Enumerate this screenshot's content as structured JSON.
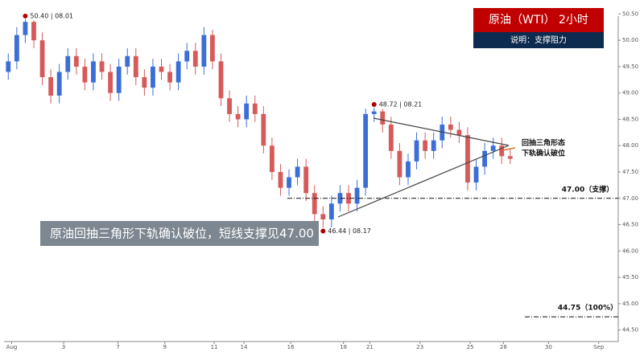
{
  "chart_data": {
    "type": "candlestick",
    "title": "原油（WTI） 2小时",
    "subtitle": "说明：支撑阻力",
    "callout": "原油回抽三角形下轨确认破位，短线支撑见47.00",
    "pattern_note": [
      "回抽三角形态",
      "下轨确认破位"
    ],
    "up_color": "#3b6fd6",
    "down_color": "#d65a5a",
    "open": [
      49.4,
      49.6,
      50.1,
      50.35,
      50.0,
      49.3,
      48.95,
      49.4,
      49.7,
      49.5,
      49.2,
      49.6,
      49.4,
      49.0,
      49.5,
      49.7,
      49.3,
      49.1,
      49.5,
      49.4,
      49.2,
      49.6,
      49.8,
      49.5,
      50.1,
      49.6,
      48.9,
      48.6,
      48.5,
      48.8,
      48.6,
      48.0,
      47.5,
      47.2,
      47.4,
      47.6,
      47.1,
      46.7,
      46.6,
      46.9,
      47.1,
      46.9,
      47.2,
      48.6,
      48.65,
      48.4,
      47.9,
      47.4,
      47.7,
      48.1,
      47.9,
      48.1,
      48.4,
      48.3,
      48.2,
      47.3,
      47.6,
      47.9,
      48.0,
      47.8
    ],
    "high": [
      49.75,
      50.25,
      50.4,
      50.38,
      50.15,
      49.45,
      49.55,
      49.85,
      49.85,
      49.65,
      49.75,
      49.75,
      49.55,
      49.65,
      49.85,
      49.85,
      49.45,
      49.65,
      49.65,
      49.55,
      49.75,
      49.95,
      49.95,
      50.25,
      50.2,
      49.75,
      49.05,
      48.75,
      48.95,
      48.95,
      48.75,
      48.15,
      47.65,
      47.55,
      47.75,
      47.75,
      47.25,
      46.85,
      47.05,
      47.25,
      47.25,
      47.35,
      48.7,
      48.72,
      48.7,
      48.55,
      48.05,
      47.85,
      48.25,
      48.25,
      48.25,
      48.55,
      48.55,
      48.45,
      48.35,
      47.75,
      48.05,
      48.15,
      48.15,
      47.95
    ],
    "low": [
      49.25,
      49.45,
      49.95,
      49.85,
      49.15,
      48.8,
      48.8,
      49.25,
      49.35,
      49.05,
      49.05,
      49.25,
      48.85,
      48.85,
      49.35,
      49.15,
      48.95,
      48.95,
      49.25,
      49.05,
      49.05,
      49.45,
      49.35,
      49.35,
      49.45,
      48.75,
      48.45,
      48.35,
      48.35,
      48.45,
      47.85,
      47.35,
      47.05,
      47.05,
      47.25,
      46.95,
      46.55,
      46.44,
      46.45,
      46.75,
      46.75,
      46.75,
      47.05,
      48.45,
      48.25,
      47.75,
      47.25,
      47.25,
      47.55,
      47.75,
      47.75,
      47.95,
      48.15,
      48.05,
      47.15,
      47.15,
      47.45,
      47.75,
      47.65,
      47.65
    ],
    "close": [
      49.6,
      50.1,
      50.35,
      50.0,
      49.3,
      48.95,
      49.4,
      49.7,
      49.5,
      49.2,
      49.6,
      49.4,
      49.0,
      49.5,
      49.7,
      49.3,
      49.1,
      49.5,
      49.4,
      49.2,
      49.6,
      49.8,
      49.5,
      50.1,
      49.6,
      48.9,
      48.6,
      48.5,
      48.8,
      48.6,
      48.0,
      47.5,
      47.2,
      47.4,
      47.6,
      47.1,
      46.7,
      46.6,
      46.9,
      47.1,
      46.9,
      47.2,
      48.6,
      48.65,
      48.4,
      47.9,
      47.4,
      47.7,
      48.1,
      47.9,
      48.1,
      48.4,
      48.3,
      48.2,
      47.3,
      47.6,
      47.9,
      48.0,
      47.8,
      47.75
    ],
    "extreme_labels": [
      {
        "label": "50.40 | 08.01",
        "value": 50.4
      },
      {
        "label": "48.72 | 08.21",
        "value": 48.72
      },
      {
        "label": "46.44 | 08.17",
        "value": 46.44
      }
    ],
    "levels": [
      {
        "label": "47.00（支撑）",
        "value": 47.0
      },
      {
        "label": "44.75（100%）",
        "value": 44.75
      }
    ],
    "xlim": [
      -0.5,
      71.7
    ],
    "xticks": [
      {
        "value": 0.4,
        "label": "Aug"
      },
      {
        "value": 6.5,
        "label": "3"
      },
      {
        "value": 12.9,
        "label": "7"
      },
      {
        "value": 18.4,
        "label": "9"
      },
      {
        "value": 24.2,
        "label": "11"
      },
      {
        "value": 27.7,
        "label": "14"
      },
      {
        "value": 33.2,
        "label": "16"
      },
      {
        "value": 39.4,
        "label": "18"
      },
      {
        "value": 42.5,
        "label": "21"
      },
      {
        "value": 48.4,
        "label": "23"
      },
      {
        "value": 54.3,
        "label": "25"
      },
      {
        "value": 58.2,
        "label": "28"
      },
      {
        "value": 63.5,
        "label": "30"
      },
      {
        "value": 69.4,
        "label": "Sep"
      }
    ],
    "ylim": [
      44.25,
      50.75
    ],
    "yticks": [
      {
        "value": 50.5,
        "label": "50.50"
      },
      {
        "value": 50.0,
        "label": "50.00"
      },
      {
        "value": 49.5,
        "label": "49.50"
      },
      {
        "value": 49.0,
        "label": "49.00"
      },
      {
        "value": 48.5,
        "label": "48.50"
      },
      {
        "value": 48.0,
        "label": "48.00"
      },
      {
        "value": 47.5,
        "label": "47.50"
      },
      {
        "value": 47.0,
        "label": "47.00"
      },
      {
        "value": 46.5,
        "label": "46.50"
      },
      {
        "value": 46.0,
        "label": "46.00"
      },
      {
        "value": 45.5,
        "label": "45.50"
      },
      {
        "value": 45.0,
        "label": "45.00"
      },
      {
        "value": 44.5,
        "label": "44.50"
      }
    ]
  }
}
